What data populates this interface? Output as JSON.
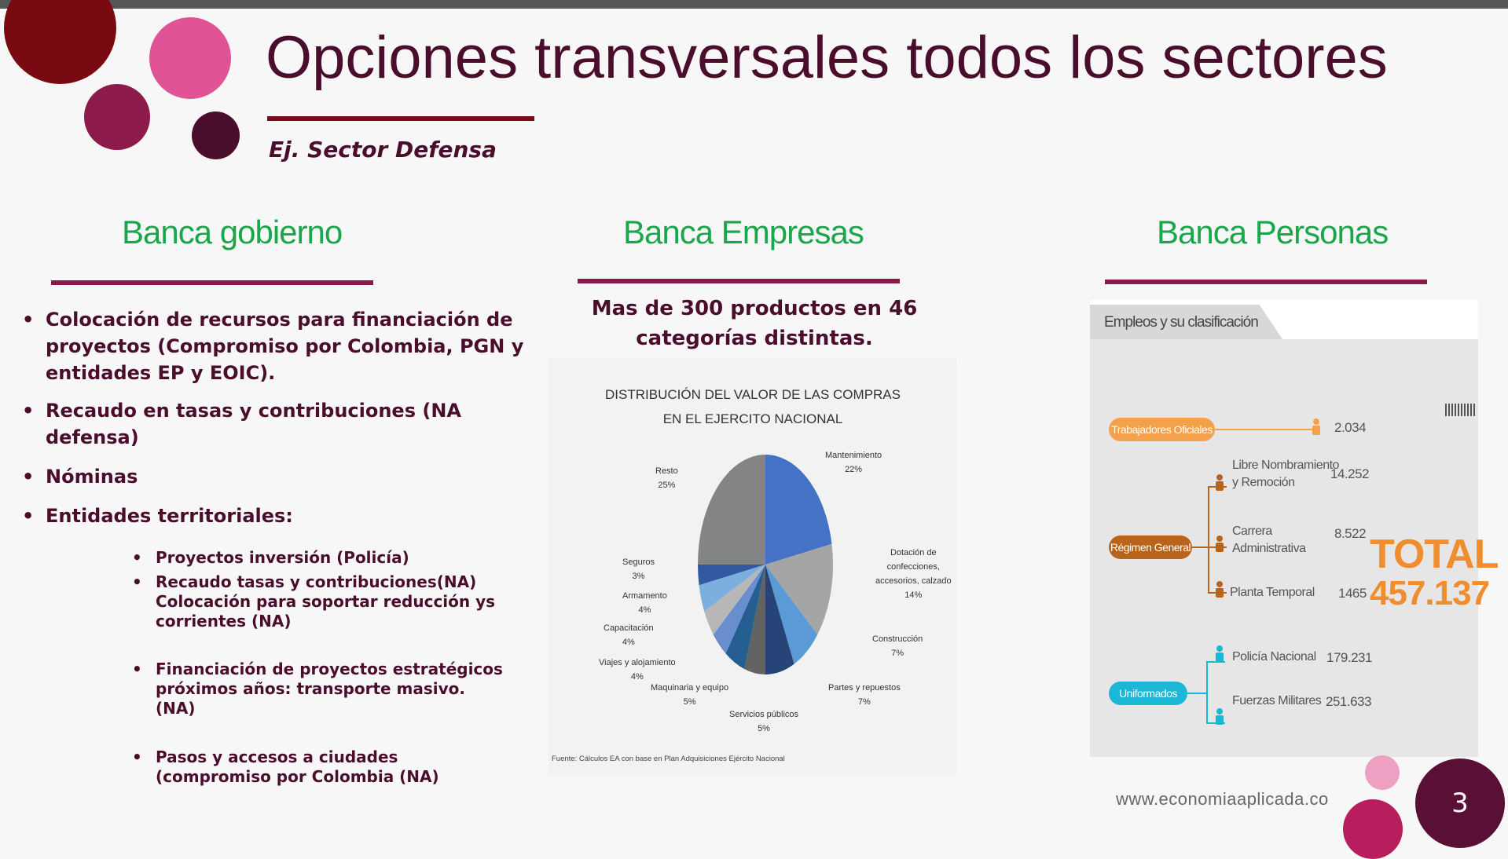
{
  "title": "Opciones transversales todos los sectores",
  "subtitle": "Ej. Sector Defensa",
  "colors": {
    "accent_maroon": "#7a0a1c",
    "pink": "#e05496",
    "heading_green": "#1aa64a",
    "dark_plum": "#4a0d2c"
  },
  "columns": {
    "gobierno": {
      "heading": "Banca gobierno",
      "bullets": [
        "Colocación de recursos para financiación de proyectos (Compromiso por Colombia, PGN y entidades EP y EOIC).",
        "Recaudo en tasas y contribuciones (NA defensa)",
        "Nóminas",
        "Entidades territoriales:"
      ],
      "sub_bullets": [
        "Proyectos inversión (Policía)",
        "Recaudo tasas y contribuciones(NA) Colocación para soportar reducción ys corrientes (NA)",
        "Financiación de  proyectos estratégicos próximos años:  transporte masivo. (NA)",
        "Pasos y accesos a ciudades (compromiso por Colombia (NA)"
      ]
    },
    "empresas": {
      "heading": "Banca Empresas",
      "text": "Mas de 300 productos en 46 categorías distintas."
    },
    "personas": {
      "heading": "Banca Personas"
    }
  },
  "chart_data": {
    "type": "pie",
    "title": "DISTRIBUCIÓN DEL VALOR DE LAS COMPRAS EN EL EJERCITO NACIONAL",
    "title_line1": "DISTRIBUCIÓN DEL VALOR DE LAS COMPRAS",
    "title_line2": "EN EL EJERCITO NACIONAL",
    "slices": [
      {
        "name": "Mantenimiento",
        "label": "Mantenimiento",
        "value": 22,
        "pct": "22%",
        "color": "#4472c4"
      },
      {
        "name": "Dotación de confecciones, accesorios, calzado",
        "label_lines": [
          "Dotación de",
          "confecciones,",
          "accesorios, calzado"
        ],
        "value": 14,
        "pct": "14%",
        "color": "#a5a5a5"
      },
      {
        "name": "Construcción",
        "label": "Construcción",
        "value": 7,
        "pct": "7%",
        "color": "#5b9bd5"
      },
      {
        "name": "Partes y repuestos",
        "label": "Partes y repuestos",
        "value": 7,
        "pct": "7%",
        "color": "#264478"
      },
      {
        "name": "Servicios públicos",
        "label": "Servicios públicos",
        "value": 5,
        "pct": "5%",
        "color": "#636363"
      },
      {
        "name": "Maquinaria y equipo",
        "label": "Maquinaria y equipo",
        "value": 5,
        "pct": "5%",
        "color": "#255e91"
      },
      {
        "name": "Viajes y alojamiento",
        "label": "Viajes y alojamiento",
        "value": 4,
        "pct": "4%",
        "color": "#698ed0"
      },
      {
        "name": "Capacitación",
        "label": "Capacitación",
        "value": 4,
        "pct": "4%",
        "color": "#b7b7b7"
      },
      {
        "name": "Armamento",
        "label": "Armamento",
        "value": 4,
        "pct": "4%",
        "color": "#7cafdd"
      },
      {
        "name": "Seguros",
        "label": "Seguros",
        "value": 3,
        "pct": "3%",
        "color": "#335aa1"
      },
      {
        "name": "Resto",
        "label": "Resto",
        "value": 25,
        "pct": "25%",
        "color": "#848484"
      }
    ],
    "source": "Fuente: Cálculos EA con base en Plan Adquisiciones Ejército Nacional"
  },
  "empleos": {
    "tab_title": "Empleos y su clasificación",
    "trabajadores": {
      "label": "Trabajadores Oficiales",
      "value": "2.034",
      "color": "#f5a04a"
    },
    "regimen": {
      "label": "Régimen General",
      "color": "#b8641a",
      "items": [
        {
          "label1": "Libre Nombramiento",
          "label2": "y Remoción",
          "value": "14.252"
        },
        {
          "label1": "Carrera",
          "label2": "Administrativa",
          "value": "8.522"
        },
        {
          "label1": "Planta Temporal",
          "label2": "",
          "value": "1465"
        }
      ]
    },
    "uniformados": {
      "label": "Uniformados",
      "color": "#1bb7d6",
      "items": [
        {
          "label": "Policía Nacional",
          "value": "179.231"
        },
        {
          "label": "Fuerzas Militares",
          "value": "251.633"
        }
      ]
    },
    "total_label": "TOTAL",
    "total_value": "457.137"
  },
  "footer": {
    "website": "www.economiaaplicada.co",
    "page_number": "3"
  }
}
